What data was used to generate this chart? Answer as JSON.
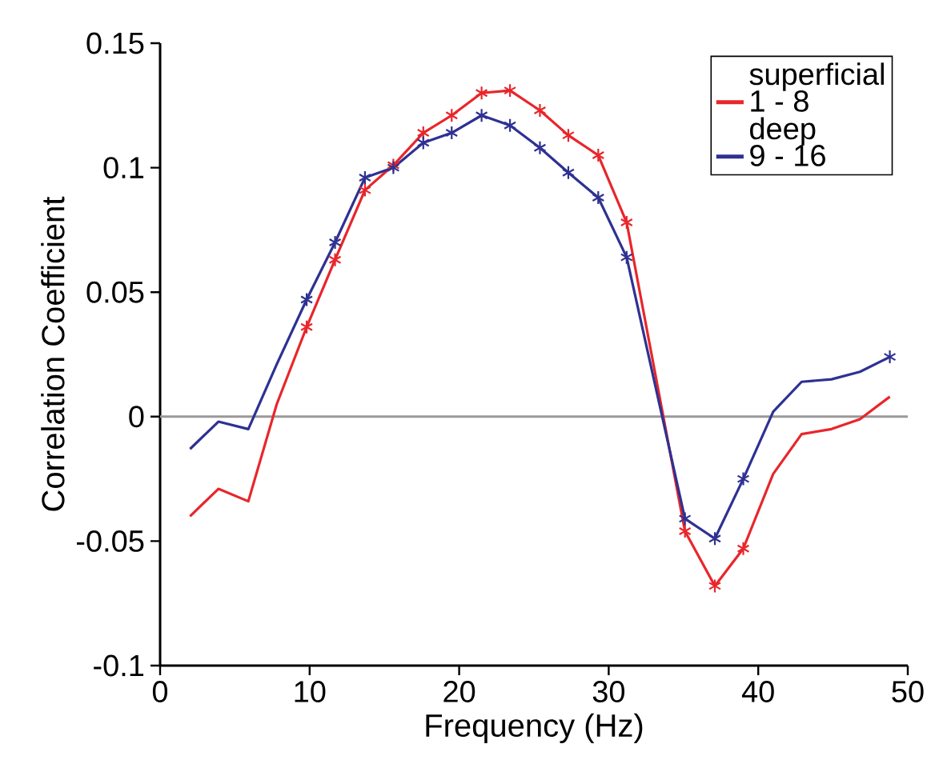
{
  "chart_data": {
    "type": "line",
    "xlabel": "Frequency (Hz)",
    "ylabel": "Correlation Coefficient",
    "xlim": [
      0,
      50
    ],
    "xticks": [
      0,
      10,
      20,
      30,
      40,
      50
    ],
    "ylim": [
      -0.1,
      0.15
    ],
    "yticks": [
      -0.1,
      -0.05,
      0,
      0.05,
      0.1,
      0.15
    ],
    "grid": false,
    "legend": "top right",
    "line_style": "solid",
    "annotations": [
      "superficial",
      "deep"
    ],
    "ref_lines": [
      {
        "axis": "y",
        "value": 0,
        "color": "#999999"
      }
    ],
    "series": [
      {
        "name": "1 - 8",
        "color": "#e8262b",
        "x": [
          2,
          3.9,
          5.9,
          7.8,
          9.8,
          11.7,
          13.7,
          15.6,
          17.6,
          19.5,
          21.5,
          23.4,
          25.4,
          27.3,
          29.3,
          31.2,
          35.1,
          37.1,
          39,
          41,
          42.9,
          44.9,
          46.8,
          48.8
        ],
        "values": [
          -0.04,
          -0.029,
          -0.034,
          0.005,
          0.036,
          0.063,
          0.091,
          0.101,
          0.114,
          0.121,
          0.13,
          0.131,
          0.123,
          0.113,
          0.105,
          0.078,
          -0.046,
          -0.068,
          -0.053,
          -0.023,
          -0.007,
          -0.005,
          -0.001,
          0.008
        ]
      },
      {
        "name": "9 - 16",
        "color": "#2e3192",
        "x": [
          2,
          3.9,
          5.9,
          7.8,
          9.8,
          11.7,
          13.7,
          15.6,
          17.6,
          19.5,
          21.5,
          23.4,
          25.4,
          27.3,
          29.3,
          31.2,
          35.1,
          37.1,
          39,
          41,
          42.9,
          44.9,
          46.8,
          48.8
        ],
        "values": [
          -0.013,
          -0.002,
          -0.005,
          0.021,
          0.047,
          0.07,
          0.096,
          0.1,
          0.11,
          0.114,
          0.121,
          0.117,
          0.108,
          0.098,
          0.088,
          0.064,
          -0.041,
          -0.049,
          -0.025,
          0.002,
          0.014,
          0.015,
          0.018,
          0.024
        ]
      },
      {
        "type": "scatter",
        "marker": "cross",
        "color": "#e8262b",
        "x": [
          9.8,
          11.7,
          13.7,
          15.6,
          17.6,
          19.5,
          21.5,
          23.4,
          25.4,
          27.3,
          29.3,
          31.2,
          35.1,
          37.1,
          39
        ],
        "values": [
          0.036,
          0.063,
          0.091,
          0.101,
          0.114,
          0.121,
          0.13,
          0.131,
          0.123,
          0.113,
          0.105,
          0.078,
          -0.046,
          -0.068,
          -0.053
        ]
      },
      {
        "type": "scatter",
        "marker": "cross",
        "color": "#2e3192",
        "x": [
          9.8,
          11.7,
          13.7,
          15.6,
          17.6,
          19.5,
          21.5,
          23.4,
          25.4,
          27.3,
          29.3,
          31.2,
          35.1,
          37.1,
          39,
          48.8
        ],
        "values": [
          0.047,
          0.07,
          0.096,
          0.1,
          0.11,
          0.114,
          0.121,
          0.117,
          0.108,
          0.098,
          0.088,
          0.064,
          -0.041,
          -0.049,
          -0.025,
          0.024
        ]
      }
    ]
  }
}
